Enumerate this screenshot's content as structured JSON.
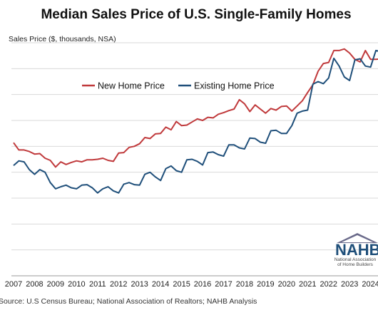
{
  "chart_data": {
    "type": "line",
    "title": "Median Sales Price of U.S. Single-Family Homes",
    "ylabel": "Sales Price ($, thousands, NSA)",
    "xlabel": "",
    "xlim": [
      2007,
      2024.85
    ],
    "ylim": [
      0,
      450
    ],
    "x_ticks": [
      "2007",
      "2008",
      "2009",
      "2010",
      "2011",
      "2012",
      "2013",
      "2014",
      "2015",
      "2016",
      "2017",
      "2018",
      "2019",
      "2020",
      "2021",
      "2022",
      "2023",
      "2024"
    ],
    "grid": true,
    "legend": "upper-left",
    "series": [
      {
        "name": "New Home Price",
        "color": "#c0393b",
        "x": [
          2007.0,
          2007.25,
          2007.5,
          2007.75,
          2008.0,
          2008.25,
          2008.5,
          2008.75,
          2009.0,
          2009.25,
          2009.5,
          2009.75,
          2010.0,
          2010.25,
          2010.5,
          2010.75,
          2011.0,
          2011.25,
          2011.5,
          2011.75,
          2012.0,
          2012.25,
          2012.5,
          2012.75,
          2013.0,
          2013.25,
          2013.5,
          2013.75,
          2014.0,
          2014.25,
          2014.5,
          2014.75,
          2015.0,
          2015.25,
          2015.5,
          2015.75,
          2016.0,
          2016.25,
          2016.5,
          2016.75,
          2017.0,
          2017.25,
          2017.5,
          2017.75,
          2018.0,
          2018.25,
          2018.5,
          2018.75,
          2019.0,
          2019.25,
          2019.5,
          2019.75,
          2020.0,
          2020.25,
          2020.5,
          2020.75,
          2021.0,
          2021.25,
          2021.5,
          2021.75,
          2022.0,
          2022.25,
          2022.5,
          2022.75,
          2023.0,
          2023.25,
          2023.5,
          2023.75,
          2024.0,
          2024.25,
          2024.5
        ],
        "values": [
          257,
          243,
          243,
          240,
          235,
          236,
          227,
          223,
          210,
          220,
          215,
          219,
          222,
          220,
          224,
          224,
          225,
          227,
          223,
          221,
          237,
          238,
          248,
          250,
          255,
          267,
          265,
          274,
          275,
          287,
          282,
          298,
          290,
          291,
          297,
          303,
          300,
          306,
          305,
          312,
          315,
          319,
          322,
          340,
          332,
          317,
          330,
          322,
          314,
          323,
          320,
          327,
          328,
          318,
          328,
          338,
          354,
          369,
          395,
          410,
          412,
          435,
          435,
          438,
          430,
          418,
          413,
          435,
          418,
          418,
          419
        ]
      },
      {
        "name": "Existing Home Price",
        "color": "#1f4f7a",
        "x": [
          2007.0,
          2007.25,
          2007.5,
          2007.75,
          2008.0,
          2008.25,
          2008.5,
          2008.75,
          2009.0,
          2009.25,
          2009.5,
          2009.75,
          2010.0,
          2010.25,
          2010.5,
          2010.75,
          2011.0,
          2011.25,
          2011.5,
          2011.75,
          2012.0,
          2012.25,
          2012.5,
          2012.75,
          2013.0,
          2013.25,
          2013.5,
          2013.75,
          2014.0,
          2014.25,
          2014.5,
          2014.75,
          2015.0,
          2015.25,
          2015.5,
          2015.75,
          2016.0,
          2016.25,
          2016.5,
          2016.75,
          2017.0,
          2017.25,
          2017.5,
          2017.75,
          2018.0,
          2018.25,
          2018.5,
          2018.75,
          2019.0,
          2019.25,
          2019.5,
          2019.75,
          2020.0,
          2020.25,
          2020.5,
          2020.75,
          2021.0,
          2021.25,
          2021.5,
          2021.75,
          2022.0,
          2022.25,
          2022.5,
          2022.75,
          2023.0,
          2023.25,
          2023.5,
          2023.75,
          2024.0,
          2024.25,
          2024.5
        ],
        "values": [
          213,
          222,
          220,
          205,
          196,
          205,
          200,
          180,
          168,
          172,
          175,
          170,
          168,
          175,
          176,
          170,
          160,
          168,
          172,
          164,
          160,
          177,
          180,
          176,
          175,
          196,
          200,
          191,
          184,
          207,
          212,
          203,
          200,
          224,
          225,
          221,
          214,
          238,
          239,
          234,
          231,
          253,
          253,
          247,
          245,
          266,
          265,
          258,
          256,
          280,
          281,
          275,
          275,
          290,
          314,
          318,
          320,
          370,
          375,
          371,
          382,
          420,
          405,
          384,
          377,
          417,
          419,
          405,
          403,
          435,
          433
        ]
      }
    ]
  },
  "source": "Source: U.S Census Bureau; National Association of Realtors; NAHB Analysis",
  "logo": {
    "abbr": "NAHB",
    "line1": "National Association",
    "line2": "of Home Builders",
    "color": "#1f4f7a"
  }
}
